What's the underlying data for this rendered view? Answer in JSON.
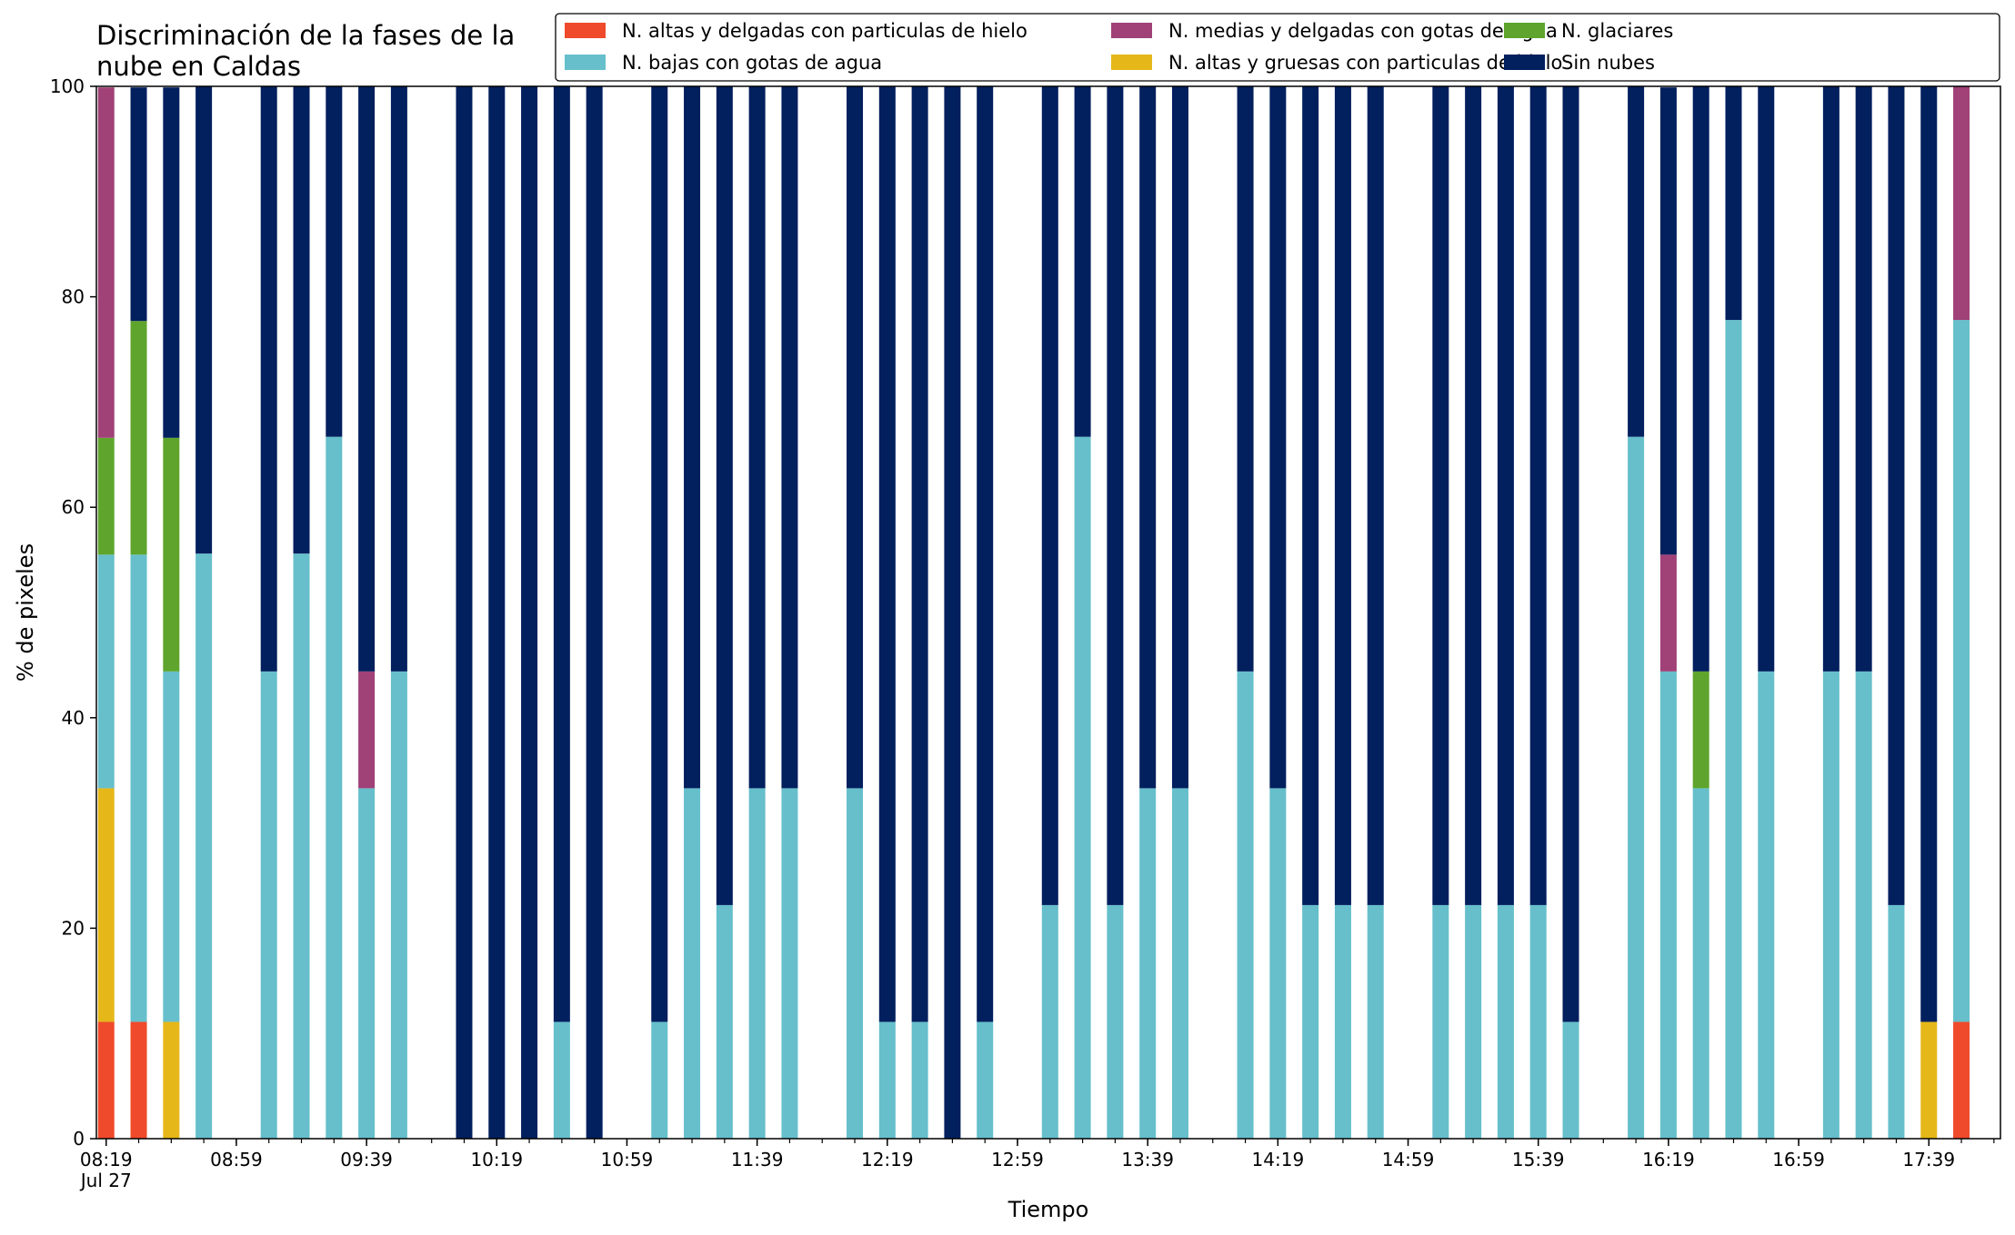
{
  "chart_data": {
    "type": "bar",
    "stacked": true,
    "title": "Discriminación de la fases de la\nnube en Caldas",
    "xlabel": "Tiempo",
    "ylabel": "% de pixeles",
    "ylim": [
      0,
      100
    ],
    "yticks": [
      "0",
      "20",
      "40",
      "60",
      "80",
      "100"
    ],
    "xticks": [
      {
        "label": "08:19",
        "sublabel": "Jul 27",
        "at": "08:19"
      },
      {
        "label": "08:59",
        "at": "08:59"
      },
      {
        "label": "09:39",
        "at": "09:39"
      },
      {
        "label": "10:19",
        "at": "10:19"
      },
      {
        "label": "10:59",
        "at": "10:59"
      },
      {
        "label": "11:39",
        "at": "11:39"
      },
      {
        "label": "12:19",
        "at": "12:19"
      },
      {
        "label": "12:59",
        "at": "12:59"
      },
      {
        "label": "13:39",
        "at": "13:39"
      },
      {
        "label": "14:19",
        "at": "14:19"
      },
      {
        "label": "14:59",
        "at": "14:59"
      },
      {
        "label": "15:39",
        "at": "15:39"
      },
      {
        "label": "16:19",
        "at": "16:19"
      },
      {
        "label": "16:59",
        "at": "16:59"
      },
      {
        "label": "17:39",
        "at": "17:39"
      }
    ],
    "x_range": [
      "08:16",
      "18:01"
    ],
    "grid": false,
    "legend_position": "top-right",
    "times": [
      "08:19",
      "08:29",
      "08:39",
      "08:49",
      "09:09",
      "09:19",
      "09:29",
      "09:39",
      "09:49",
      "10:09",
      "10:19",
      "10:29",
      "10:39",
      "10:49",
      "11:09",
      "11:19",
      "11:29",
      "11:39",
      "11:49",
      "12:09",
      "12:19",
      "12:29",
      "12:39",
      "12:49",
      "13:09",
      "13:19",
      "13:29",
      "13:39",
      "13:49",
      "14:09",
      "14:19",
      "14:29",
      "14:39",
      "14:49",
      "15:09",
      "15:19",
      "15:29",
      "15:39",
      "15:49",
      "16:09",
      "16:19",
      "16:29",
      "16:39",
      "16:49",
      "17:09",
      "17:19",
      "17:29",
      "17:39",
      "17:49"
    ],
    "series": [
      {
        "name": "N. altas y delgadas con particulas de hielo",
        "color": "#ef4a2b",
        "values": [
          11.1,
          11.1,
          0,
          0,
          0,
          0,
          0,
          0,
          0,
          0,
          0,
          0,
          0,
          0,
          0,
          0,
          0,
          0,
          0,
          0,
          0,
          0,
          0,
          0,
          0,
          0,
          0,
          0,
          0,
          0,
          0,
          0,
          0,
          0,
          0,
          0,
          0,
          0,
          0,
          0,
          0,
          0,
          0,
          0,
          0,
          0,
          0,
          0,
          11.1
        ]
      },
      {
        "name": "N. altas y gruesas con particulas de hielo",
        "color": "#e5b718",
        "values": [
          22.2,
          0,
          11.1,
          0,
          0,
          0,
          0,
          0,
          0,
          0,
          0,
          0,
          0,
          0,
          0,
          0,
          0,
          0,
          0,
          0,
          0,
          0,
          0,
          0,
          0,
          0,
          0,
          0,
          0,
          0,
          0,
          0,
          0,
          0,
          0,
          0,
          0,
          0,
          0,
          0,
          0,
          0,
          0,
          0,
          0,
          0,
          0,
          11.1,
          0
        ]
      },
      {
        "name": "N. bajas con gotas de agua",
        "color": "#66bfcb",
        "values": [
          22.2,
          44.4,
          33.3,
          55.6,
          44.4,
          55.6,
          66.7,
          33.3,
          44.4,
          0,
          0,
          0,
          11.1,
          0,
          11.1,
          33.3,
          22.2,
          33.3,
          33.3,
          33.3,
          11.1,
          11.1,
          0,
          11.1,
          22.2,
          66.7,
          22.2,
          33.3,
          33.3,
          44.4,
          33.3,
          22.2,
          22.2,
          22.2,
          22.2,
          22.2,
          22.2,
          22.2,
          11.1,
          66.7,
          44.4,
          33.3,
          77.8,
          44.4,
          44.4,
          44.4,
          22.2,
          0,
          66.7
        ]
      },
      {
        "name": "N. glaciares",
        "color": "#5fa52d",
        "values": [
          11.1,
          22.2,
          22.2,
          0,
          0,
          0,
          0,
          0,
          0,
          0,
          0,
          0,
          0,
          0,
          0,
          0,
          0,
          0,
          0,
          0,
          0,
          0,
          0,
          0,
          0,
          0,
          0,
          0,
          0,
          0,
          0,
          0,
          0,
          0,
          0,
          0,
          0,
          0,
          0,
          0,
          0,
          11.1,
          0,
          0,
          0,
          0,
          0,
          0,
          0
        ]
      },
      {
        "name": "N. medias y delgadas con gotas de agua",
        "color": "#a04177",
        "values": [
          33.3,
          0,
          0,
          0,
          0,
          0,
          0,
          11.1,
          0,
          0,
          0,
          0,
          0,
          0,
          0,
          0,
          0,
          0,
          0,
          0,
          0,
          0,
          0,
          0,
          0,
          0,
          0,
          0,
          0,
          0,
          0,
          0,
          0,
          0,
          0,
          0,
          0,
          0,
          0,
          0,
          11.1,
          0,
          0,
          0,
          0,
          0,
          0,
          0,
          22.2
        ]
      },
      {
        "name": "Sin nubes",
        "color": "#021f5e",
        "values": [
          0,
          22.2,
          33.3,
          44.4,
          55.6,
          44.4,
          33.3,
          55.6,
          55.6,
          100,
          100,
          100,
          88.9,
          100,
          88.9,
          66.7,
          77.8,
          66.7,
          66.7,
          66.7,
          88.9,
          88.9,
          100,
          88.9,
          77.8,
          33.3,
          77.8,
          66.7,
          66.7,
          55.6,
          66.7,
          77.8,
          77.8,
          77.8,
          77.8,
          77.8,
          77.8,
          77.8,
          88.9,
          33.3,
          44.4,
          55.6,
          22.2,
          55.6,
          55.6,
          55.6,
          77.8,
          88.9,
          0
        ]
      }
    ],
    "legend_order": [
      0,
      2,
      4,
      1,
      3,
      5
    ]
  }
}
